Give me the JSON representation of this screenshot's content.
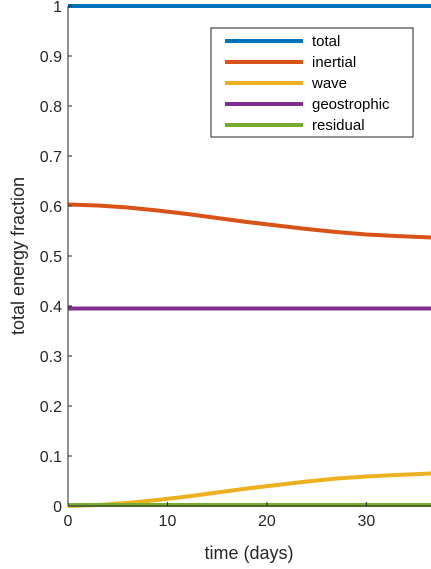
{
  "chart_data": {
    "type": "line",
    "xlabel": "time (days)",
    "ylabel": "total energy fraction",
    "xlim": [
      0,
      36.5
    ],
    "ylim": [
      0,
      1
    ],
    "xticks": [
      0,
      10,
      20,
      30
    ],
    "yticks": [
      0,
      0.1,
      0.2,
      0.3,
      0.4,
      0.5,
      0.6,
      0.7,
      0.8,
      0.9,
      1
    ],
    "ytick_labels": [
      "0",
      "0.1",
      "0.2",
      "0.3",
      "0.4",
      "0.5",
      "0.6",
      "0.7",
      "0.8",
      "0.9",
      "1"
    ],
    "grid": false,
    "legend_position": "top-right",
    "series": [
      {
        "name": "total",
        "color": "#0072BD",
        "x": [
          0,
          5,
          10,
          15,
          20,
          25,
          30,
          36.5
        ],
        "y": [
          1,
          1,
          1,
          1,
          1,
          1,
          1,
          1
        ]
      },
      {
        "name": "inertial",
        "color": "#D95319",
        "x": [
          0,
          3,
          6,
          9,
          12,
          15,
          18,
          21,
          24,
          27,
          30,
          33,
          36.5
        ],
        "y": [
          0.603,
          0.601,
          0.597,
          0.591,
          0.584,
          0.576,
          0.568,
          0.561,
          0.554,
          0.548,
          0.543,
          0.54,
          0.537
        ]
      },
      {
        "name": "wave",
        "color": "#EDB120",
        "x": [
          0,
          3,
          6,
          9,
          12,
          15,
          18,
          21,
          24,
          27,
          30,
          33,
          36.5
        ],
        "y": [
          0,
          0.002,
          0.006,
          0.012,
          0.019,
          0.027,
          0.035,
          0.042,
          0.049,
          0.055,
          0.059,
          0.062,
          0.065
        ]
      },
      {
        "name": "geostrophic",
        "color": "#7E2F8E",
        "x": [
          0,
          5,
          10,
          15,
          20,
          25,
          30,
          36.5
        ],
        "y": [
          0.395,
          0.395,
          0.395,
          0.395,
          0.395,
          0.395,
          0.395,
          0.395
        ]
      },
      {
        "name": "residual",
        "color": "#77AC30",
        "x": [
          0,
          5,
          10,
          15,
          20,
          25,
          30,
          36.5
        ],
        "y": [
          0.002,
          0.002,
          0.002,
          0.002,
          0.002,
          0.002,
          0.002,
          0.002
        ]
      }
    ]
  }
}
